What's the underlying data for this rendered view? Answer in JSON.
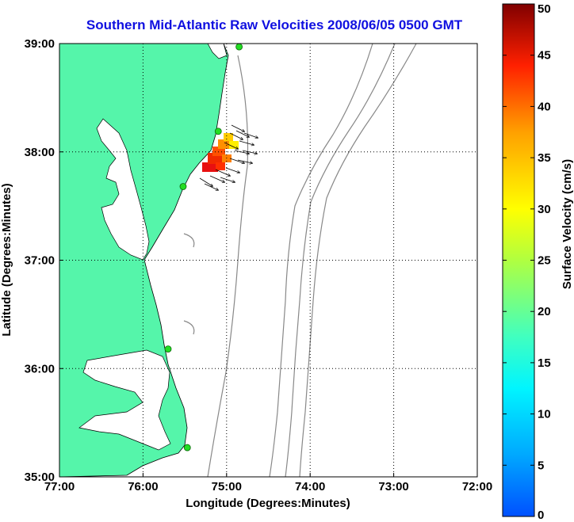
{
  "title": "Southern Mid-Atlantic Raw Velocities 2008/06/05 0500 GMT",
  "xaxis": {
    "label": "Longitude (Degrees:Minutes)",
    "ticks": [
      "77:00",
      "76:00",
      "75:00",
      "74:00",
      "73:00",
      "72:00"
    ]
  },
  "yaxis": {
    "label": "Latitude (Degrees:Minutes)",
    "ticks": [
      "39:00",
      "38:00",
      "37:00",
      "36:00",
      "35:00"
    ]
  },
  "colorbar": {
    "label": "Surface Velocity (cm/s)",
    "ticks": [
      "50",
      "45",
      "40",
      "35",
      "30",
      "25",
      "20",
      "15",
      "10",
      "5",
      "0"
    ],
    "min": 0,
    "max": 50,
    "colormap": "jet"
  },
  "map": {
    "lon_range": [
      -77,
      -72
    ],
    "lat_range": [
      35,
      39
    ],
    "land_color": "#55f5aa",
    "water_color": "#ffffff",
    "bathymetry_color": "#808080",
    "station_color": "#22dd22",
    "grid": "dotted"
  },
  "stations": [
    {
      "lon": -74.85,
      "lat": 38.97
    },
    {
      "lon": -75.1,
      "lat": 38.19
    },
    {
      "lon": -75.52,
      "lat": 37.68
    },
    {
      "lon": -75.7,
      "lat": 36.18
    },
    {
      "lon": -75.47,
      "lat": 35.27
    }
  ]
}
